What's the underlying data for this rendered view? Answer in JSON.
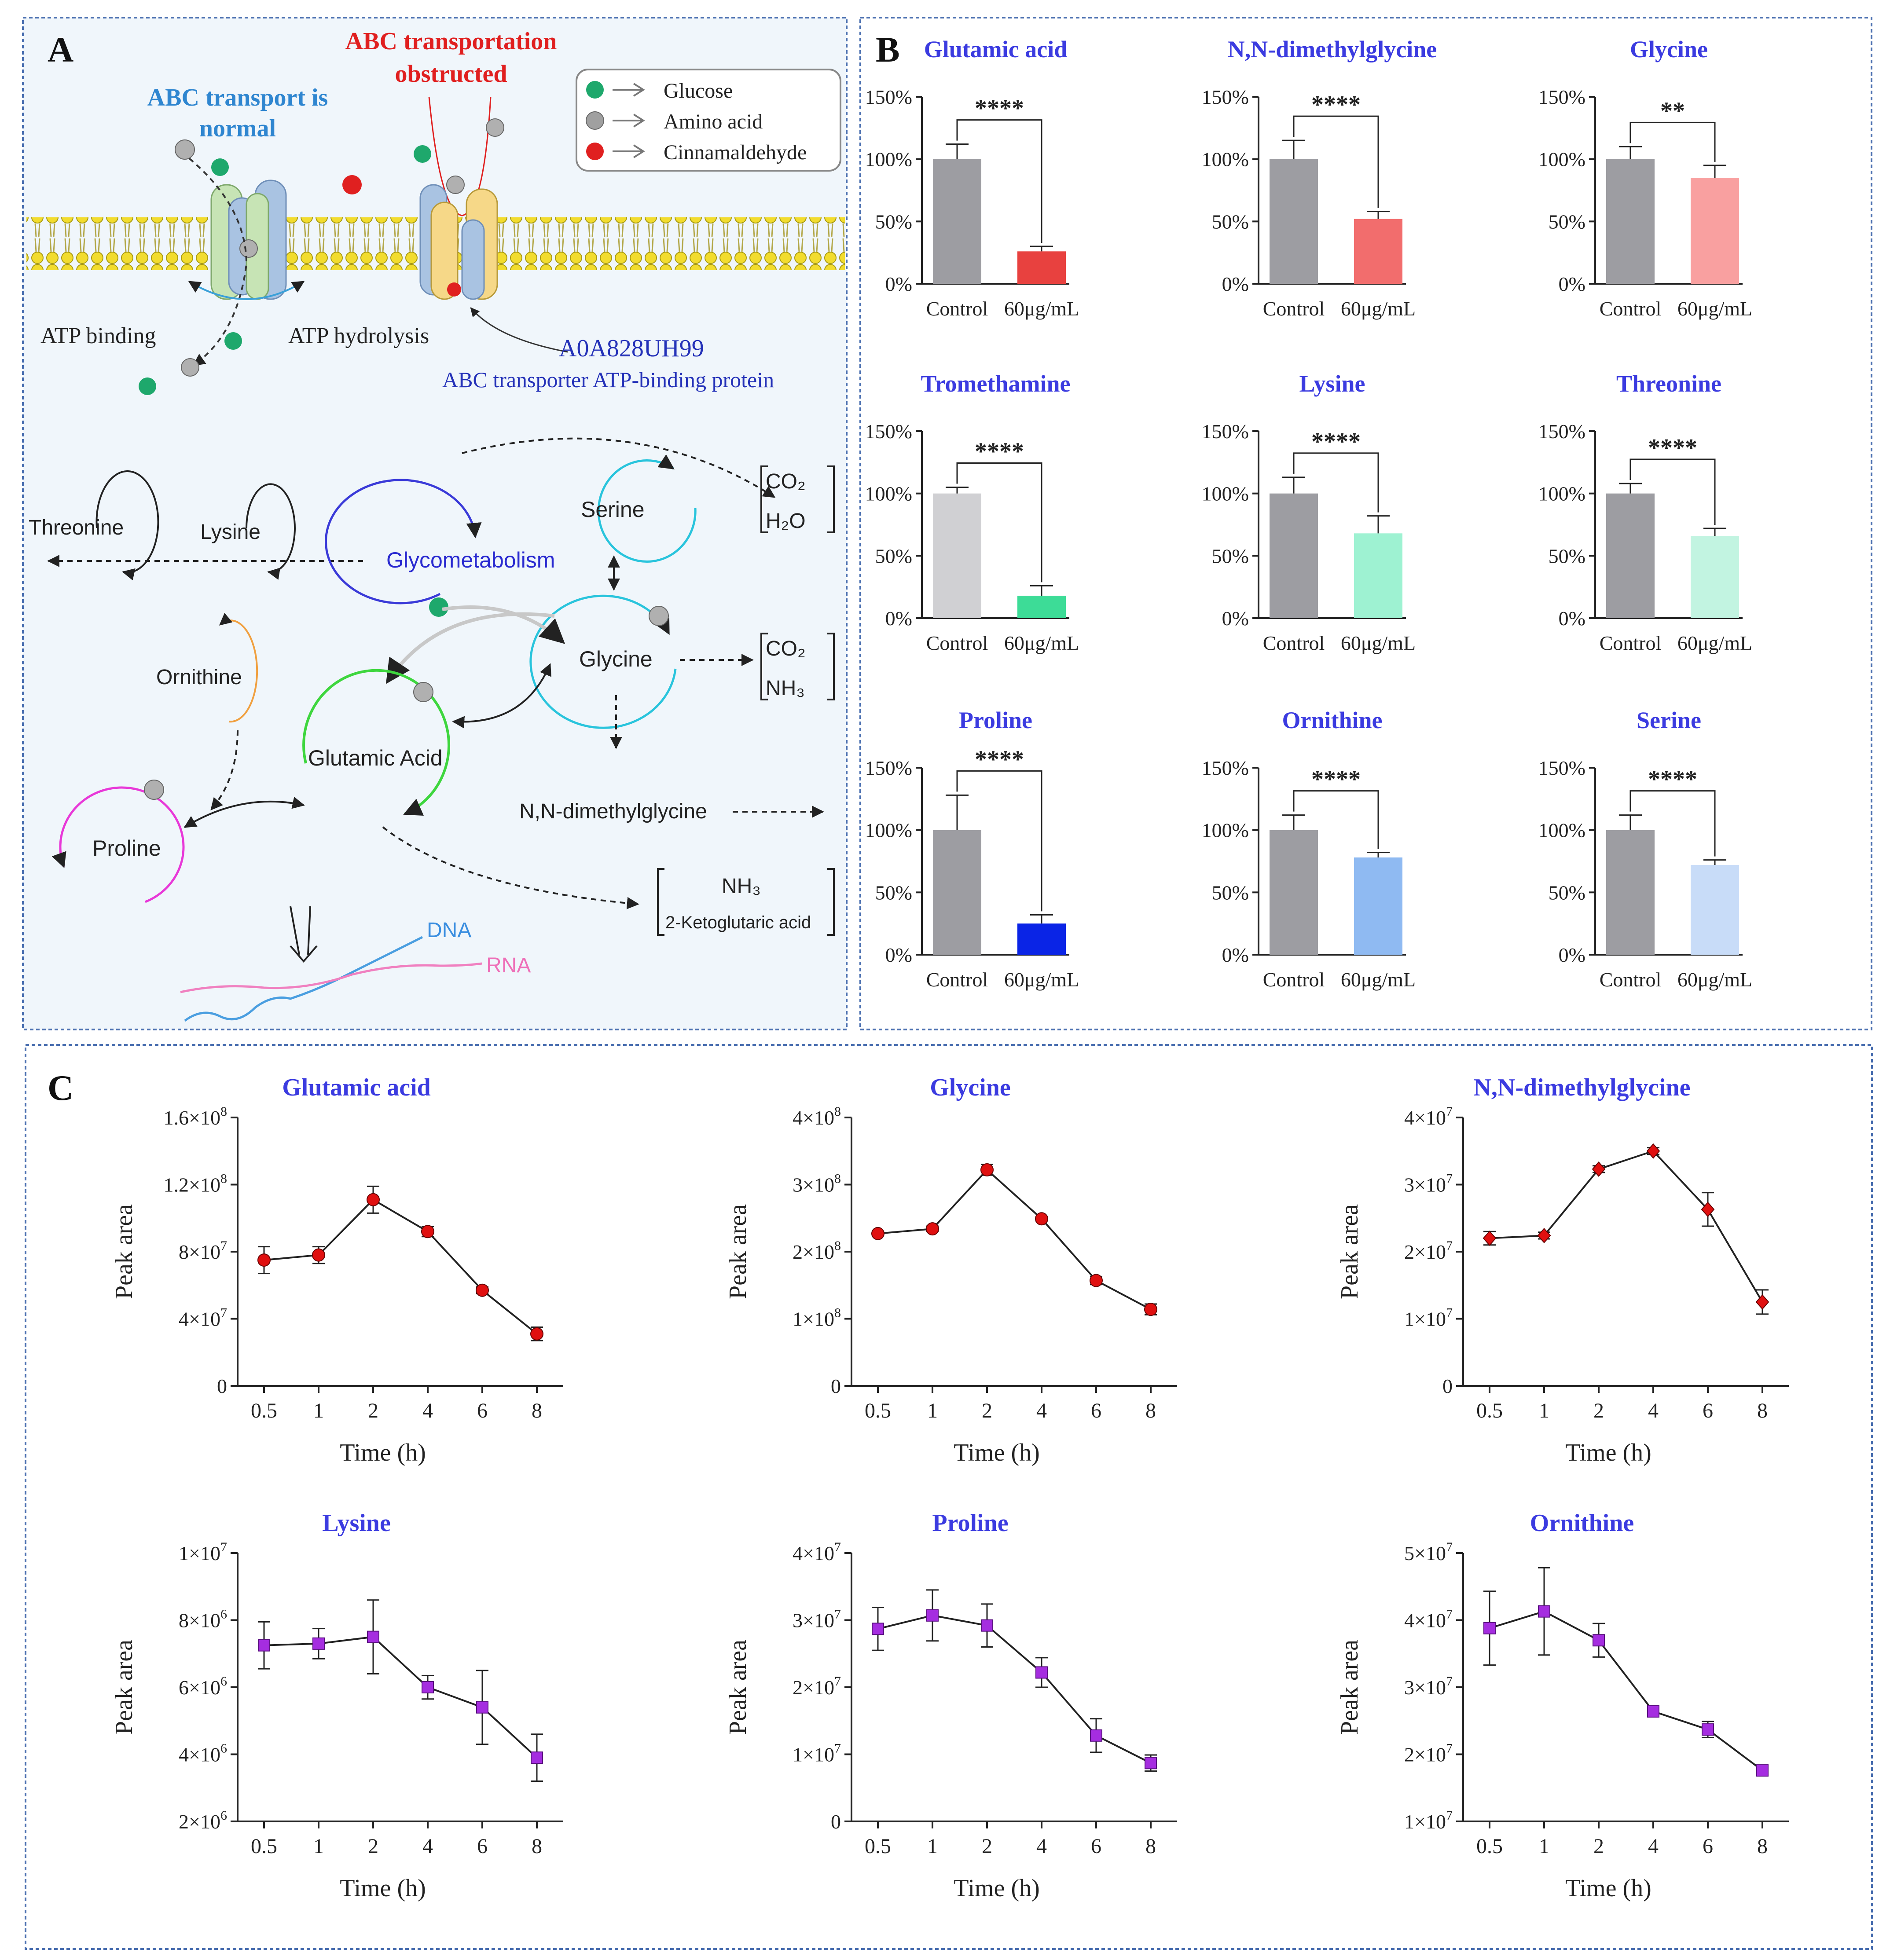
{
  "panel_letters": {
    "a": "A",
    "b": "B",
    "c": "C"
  },
  "panelA": {
    "abc_normal": [
      "ABC transport is",
      "normal"
    ],
    "abc_obstructed": [
      "ABC transportation",
      "obstructed"
    ],
    "legend": [
      {
        "label": "Glucose",
        "color": "#1ea86c"
      },
      {
        "label": "Amino acid",
        "color": "#9a9a9a"
      },
      {
        "label": "Cinnamaldehyde",
        "color": "#e02020"
      }
    ],
    "atp_binding": "ATP binding",
    "atp_hydrolysis": "ATP hydrolysis",
    "protein_id": "A0A828UH99",
    "protein_name": "ABC transporter ATP-binding protein",
    "threonine": "Threonine",
    "lysine": "Lysine",
    "glycometabolism": "Glycometabolism",
    "serine": "Serine",
    "glycine": "Glycine",
    "ornithine": "Ornithine",
    "glutamic": "Glutamic Acid",
    "proline": "Proline",
    "nndmg": "N,N-dimethylglycine",
    "co2": "CO₂",
    "h2o": "H₂O",
    "nh3": "NH₃",
    "keto": "2-Ketoglutaric acid",
    "dna": "DNA",
    "rna": "RNA"
  },
  "chart_data": [
    {
      "id": "b1",
      "panel": "B",
      "type": "bar",
      "title": "Glutamic acid",
      "categories": [
        "Control",
        "60μg/mL"
      ],
      "values": [
        100,
        26
      ],
      "errors": [
        12,
        4
      ],
      "colors": [
        "#9d9da2",
        "#e8413f"
      ],
      "ylim": [
        0,
        150
      ],
      "yticks": [
        "0%",
        "50%",
        "100%",
        "150%"
      ],
      "significance": "****"
    },
    {
      "id": "b2",
      "panel": "B",
      "type": "bar",
      "title": "N,N-dimethylglycine",
      "categories": [
        "Control",
        "60μg/mL"
      ],
      "values": [
        100,
        52
      ],
      "errors": [
        15,
        6
      ],
      "colors": [
        "#9d9da2",
        "#f26d6d"
      ],
      "ylim": [
        0,
        150
      ],
      "yticks": [
        "0%",
        "50%",
        "100%",
        "150%"
      ],
      "significance": "****"
    },
    {
      "id": "b3",
      "panel": "B",
      "type": "bar",
      "title": "Glycine",
      "categories": [
        "Control",
        "60μg/mL"
      ],
      "values": [
        100,
        85
      ],
      "errors": [
        10,
        10
      ],
      "colors": [
        "#9d9da2",
        "#f9a0a0"
      ],
      "ylim": [
        0,
        150
      ],
      "yticks": [
        "0%",
        "50%",
        "100%",
        "150%"
      ],
      "significance": "**"
    },
    {
      "id": "b4",
      "panel": "B",
      "type": "bar",
      "title": "Tromethamine",
      "categories": [
        "Control",
        "60μg/mL"
      ],
      "values": [
        100,
        18
      ],
      "errors": [
        5,
        8
      ],
      "colors": [
        "#d0d0d3",
        "#3ddc97"
      ],
      "ylim": [
        0,
        150
      ],
      "yticks": [
        "0%",
        "50%",
        "100%",
        "150%"
      ],
      "significance": "****"
    },
    {
      "id": "b5",
      "panel": "B",
      "type": "bar",
      "title": "Lysine",
      "categories": [
        "Control",
        "60μg/mL"
      ],
      "values": [
        100,
        68
      ],
      "errors": [
        13,
        14
      ],
      "colors": [
        "#9d9da2",
        "#9ef2d2"
      ],
      "ylim": [
        0,
        150
      ],
      "yticks": [
        "0%",
        "50%",
        "100%",
        "150%"
      ],
      "significance": "****"
    },
    {
      "id": "b6",
      "panel": "B",
      "type": "bar",
      "title": "Threonine",
      "categories": [
        "Control",
        "60μg/mL"
      ],
      "values": [
        100,
        66
      ],
      "errors": [
        8,
        6
      ],
      "colors": [
        "#9d9da2",
        "#c2f4e1"
      ],
      "ylim": [
        0,
        150
      ],
      "yticks": [
        "0%",
        "50%",
        "100%",
        "150%"
      ],
      "significance": "****"
    },
    {
      "id": "b7",
      "panel": "B",
      "type": "bar",
      "title": "Proline",
      "categories": [
        "Control",
        "60μg/mL"
      ],
      "values": [
        100,
        25
      ],
      "errors": [
        28,
        7
      ],
      "colors": [
        "#9d9da2",
        "#0a24e6"
      ],
      "ylim": [
        0,
        150
      ],
      "yticks": [
        "0%",
        "50%",
        "100%",
        "150%"
      ],
      "significance": "****"
    },
    {
      "id": "b8",
      "panel": "B",
      "type": "bar",
      "title": "Ornithine",
      "categories": [
        "Control",
        "60μg/mL"
      ],
      "values": [
        100,
        78
      ],
      "errors": [
        12,
        4
      ],
      "colors": [
        "#9d9da2",
        "#8fbaf2"
      ],
      "ylim": [
        0,
        150
      ],
      "yticks": [
        "0%",
        "50%",
        "100%",
        "150%"
      ],
      "significance": "****"
    },
    {
      "id": "b9",
      "panel": "B",
      "type": "bar",
      "title": "Serine",
      "categories": [
        "Control",
        "60μg/mL"
      ],
      "values": [
        100,
        72
      ],
      "errors": [
        12,
        4
      ],
      "colors": [
        "#9d9da2",
        "#c8dcf8"
      ],
      "ylim": [
        0,
        150
      ],
      "yticks": [
        "0%",
        "50%",
        "100%",
        "150%"
      ],
      "significance": "****"
    },
    {
      "id": "c1",
      "panel": "C",
      "type": "line",
      "title": "Glutamic acid",
      "x": [
        "0.5",
        "1",
        "2",
        "4",
        "6",
        "8"
      ],
      "y": [
        75000000.0,
        78000000.0,
        111000000.0,
        92000000.0,
        57000000.0,
        31000000.0
      ],
      "errors": [
        8000000.0,
        5000000.0,
        8000000.0,
        3000000.0,
        2000000.0,
        4000000.0
      ],
      "ylim": [
        0,
        160000000.0
      ],
      "yticks": [
        {
          "v": 0,
          "m": "0",
          "e": ""
        },
        {
          "v": 40000000.0,
          "m": "4×10",
          "e": "7"
        },
        {
          "v": 80000000.0,
          "m": "8×10",
          "e": "7"
        },
        {
          "v": 120000000.0,
          "m": "1.2×10",
          "e": "8"
        },
        {
          "v": 160000000.0,
          "m": "1.6×10",
          "e": "8"
        }
      ],
      "xlabel": "Time (h)",
      "ylabel": "Peak area",
      "marker_color": "#e01010",
      "marker": "circle"
    },
    {
      "id": "c2",
      "panel": "C",
      "type": "line",
      "title": "Glycine",
      "x": [
        "0.5",
        "1",
        "2",
        "4",
        "6",
        "8"
      ],
      "y": [
        227000000.0,
        234000000.0,
        322000000.0,
        249000000.0,
        157000000.0,
        114000000.0
      ],
      "errors": [
        3000000.0,
        4000000.0,
        8000000.0,
        3000000.0,
        6000000.0,
        8000000.0
      ],
      "ylim": [
        0,
        400000000.0
      ],
      "yticks": [
        {
          "v": 0,
          "m": "0",
          "e": ""
        },
        {
          "v": 100000000.0,
          "m": "1×10",
          "e": "8"
        },
        {
          "v": 200000000.0,
          "m": "2×10",
          "e": "8"
        },
        {
          "v": 300000000.0,
          "m": "3×10",
          "e": "8"
        },
        {
          "v": 400000000.0,
          "m": "4×10",
          "e": "8"
        }
      ],
      "xlabel": "Time (h)",
      "ylabel": "Peak area",
      "marker_color": "#e01010",
      "marker": "circle"
    },
    {
      "id": "c3",
      "panel": "C",
      "type": "line",
      "title": "N,N-dimethylglycine",
      "x": [
        "0.5",
        "1",
        "2",
        "4",
        "6",
        "8"
      ],
      "y": [
        22000000.0,
        22400000.0,
        32300000.0,
        35000000.0,
        26300000.0,
        12500000.0
      ],
      "errors": [
        1000000.0,
        500000.0,
        500000.0,
        500000.0,
        2500000.0,
        1800000.0
      ],
      "ylim": [
        0,
        40000000.0
      ],
      "yticks": [
        {
          "v": 0,
          "m": "0",
          "e": ""
        },
        {
          "v": 10000000.0,
          "m": "1×10",
          "e": "7"
        },
        {
          "v": 20000000.0,
          "m": "2×10",
          "e": "7"
        },
        {
          "v": 30000000.0,
          "m": "3×10",
          "e": "7"
        },
        {
          "v": 40000000.0,
          "m": "4×10",
          "e": "7"
        }
      ],
      "xlabel": "Time (h)",
      "ylabel": "Peak area",
      "marker_color": "#e01010",
      "marker": "diamond"
    },
    {
      "id": "c4",
      "panel": "C",
      "type": "line",
      "title": "Lysine",
      "x": [
        "0.5",
        "1",
        "2",
        "4",
        "6",
        "8"
      ],
      "y": [
        7250000.0,
        7300000.0,
        7500000.0,
        6000000.0,
        5400000.0,
        3900000.0
      ],
      "errors": [
        700000.0,
        450000.0,
        1100000.0,
        350000.0,
        1100000.0,
        700000.0
      ],
      "ylim": [
        2000000.0,
        10000000.0
      ],
      "yticks": [
        {
          "v": 2000000.0,
          "m": "2×10",
          "e": "6"
        },
        {
          "v": 4000000.0,
          "m": "4×10",
          "e": "6"
        },
        {
          "v": 6000000.0,
          "m": "6×10",
          "e": "6"
        },
        {
          "v": 8000000.0,
          "m": "8×10",
          "e": "6"
        },
        {
          "v": 10000000.0,
          "m": "1×10",
          "e": "7"
        }
      ],
      "xlabel": "Time (h)",
      "ylabel": "Peak area",
      "marker_color": "#a52de0",
      "marker": "square"
    },
    {
      "id": "c5",
      "panel": "C",
      "type": "line",
      "title": "Proline",
      "x": [
        "0.5",
        "1",
        "2",
        "4",
        "6",
        "8"
      ],
      "y": [
        28700000.0,
        30700000.0,
        29200000.0,
        22200000.0,
        12800000.0,
        8700000.0
      ],
      "errors": [
        3200000.0,
        3800000.0,
        3200000.0,
        2200000.0,
        2500000.0,
        1200000.0
      ],
      "ylim": [
        0,
        40000000.0
      ],
      "yticks": [
        {
          "v": 0,
          "m": "0",
          "e": ""
        },
        {
          "v": 10000000.0,
          "m": "1×10",
          "e": "7"
        },
        {
          "v": 20000000.0,
          "m": "2×10",
          "e": "7"
        },
        {
          "v": 30000000.0,
          "m": "3×10",
          "e": "7"
        },
        {
          "v": 40000000.0,
          "m": "4×10",
          "e": "7"
        }
      ],
      "xlabel": "Time (h)",
      "ylabel": "Peak area",
      "marker_color": "#a52de0",
      "marker": "square"
    },
    {
      "id": "c6",
      "panel": "C",
      "type": "line",
      "title": "Ornithine",
      "x": [
        "0.5",
        "1",
        "2",
        "4",
        "6",
        "8"
      ],
      "y": [
        38800000.0,
        41300000.0,
        37000000.0,
        26400000.0,
        23700000.0,
        17600000.0
      ],
      "errors": [
        5500000.0,
        6500000.0,
        2500000.0,
        500000.0,
        1200000.0,
        300000.0
      ],
      "ylim": [
        10000000.0,
        50000000.0
      ],
      "yticks": [
        {
          "v": 10000000.0,
          "m": "1×10",
          "e": "7"
        },
        {
          "v": 20000000.0,
          "m": "2×10",
          "e": "7"
        },
        {
          "v": 30000000.0,
          "m": "3×10",
          "e": "7"
        },
        {
          "v": 40000000.0,
          "m": "4×10",
          "e": "7"
        },
        {
          "v": 50000000.0,
          "m": "5×10",
          "e": "7"
        }
      ],
      "xlabel": "Time (h)",
      "ylabel": "Peak area",
      "marker_color": "#a52de0",
      "marker": "square"
    }
  ]
}
